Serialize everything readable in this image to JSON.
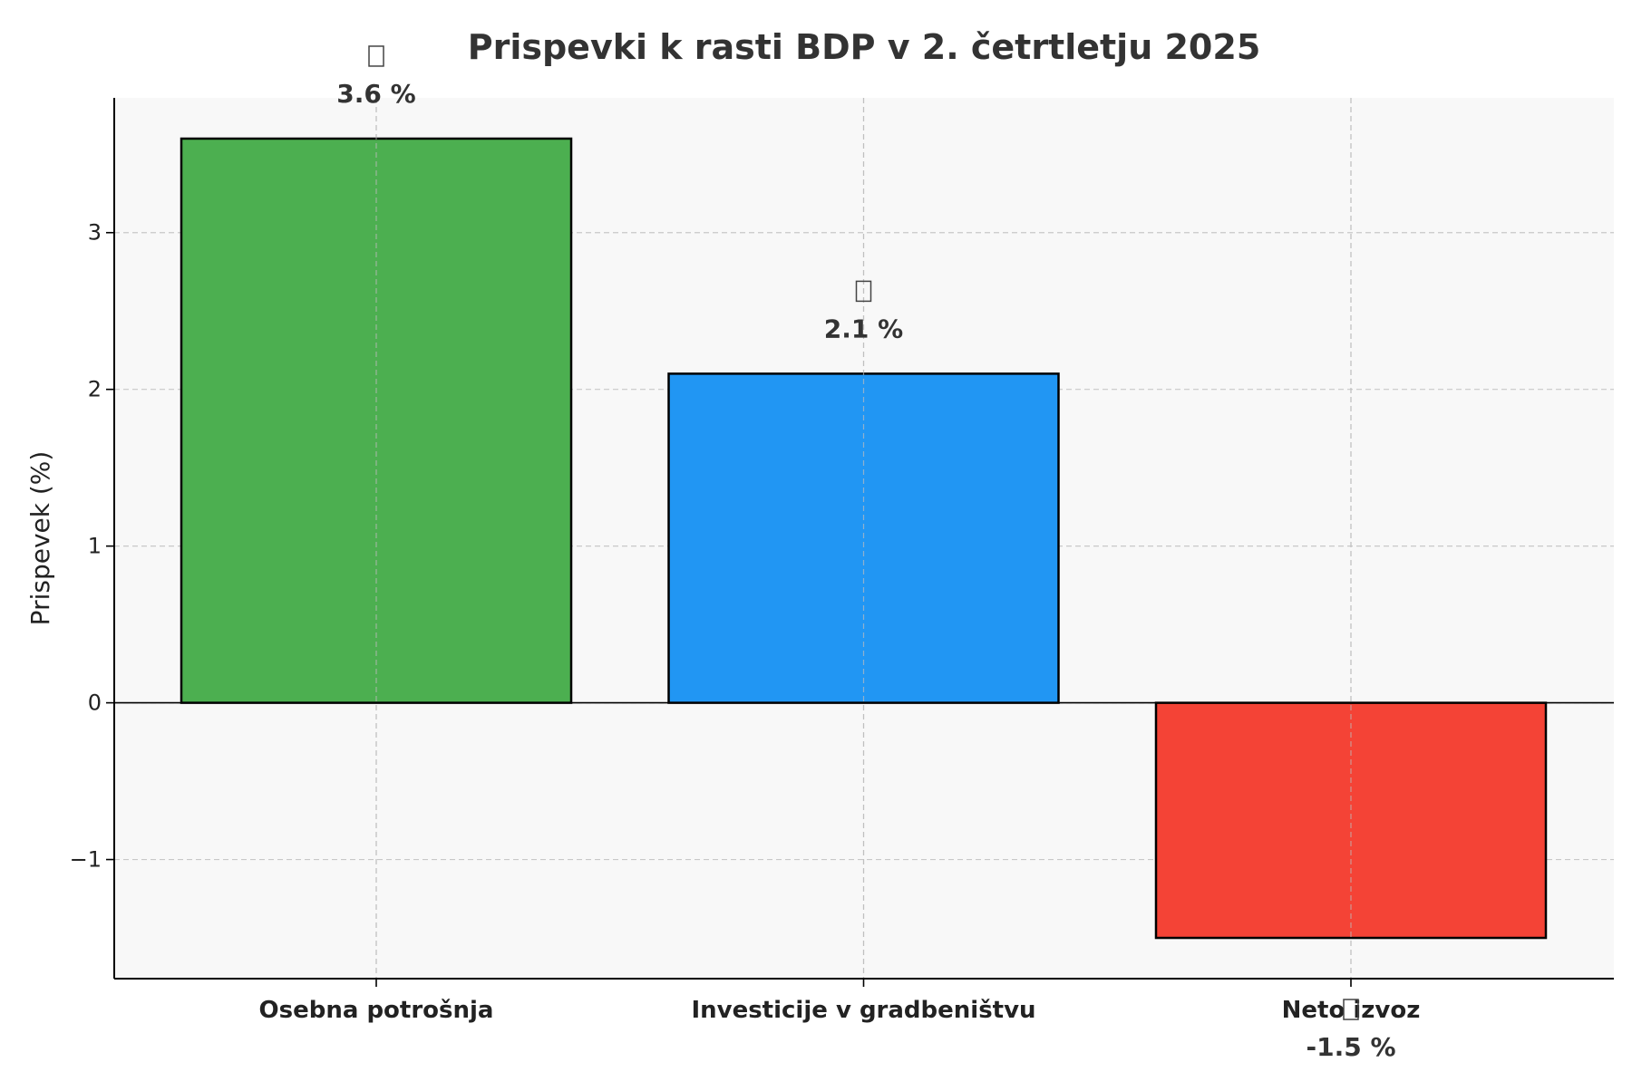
{
  "chart_data": {
    "type": "bar",
    "title": "Prispevki k rasti BDP v 2. četrtletju 2025",
    "xlabel": "",
    "ylabel": "Prispevek (%)",
    "categories": [
      "Osebna potrošnja",
      "Investicije v gradbeništvu",
      "Neto izvoz"
    ],
    "values": [
      3.6,
      2.1,
      -1.5
    ],
    "value_labels": [
      "3.6 %",
      "2.1 %",
      "-1.5 %"
    ],
    "colors": [
      "#4caf50",
      "#2196f3",
      "#f44336"
    ],
    "yticks": [
      -1,
      0,
      1,
      2,
      3
    ],
    "ytick_labels": [
      "−1",
      "0",
      "1",
      "2",
      "3"
    ],
    "ylim": [
      -1.76,
      3.86
    ],
    "grid": true,
    "legend": "none",
    "plot_background": "#f8f8f8",
    "bar_edge_color": "#000000"
  }
}
